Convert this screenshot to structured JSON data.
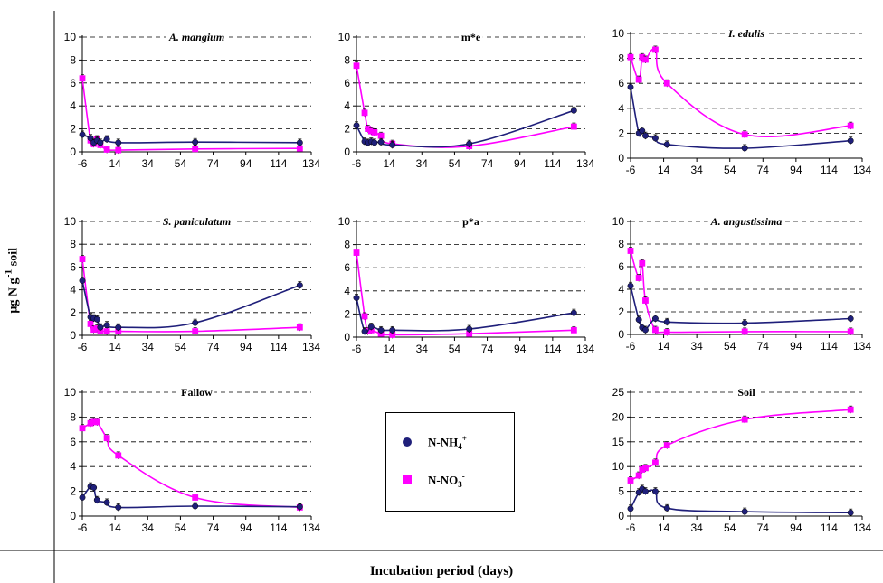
{
  "figure": {
    "ylabel_main": "µg N g",
    "ylabel_sup": "-1",
    "ylabel_tail": " soil",
    "xlabel": "Incubation period (days)"
  },
  "legend": {
    "items": [
      {
        "label": "N-NH",
        "sub": "4",
        "sup": "+",
        "color": "#1f1f7a",
        "marker": "circle"
      },
      {
        "label": "N-NO",
        "sub": "3",
        "sup": "-",
        "color": "#ff00ff",
        "marker": "square"
      }
    ]
  },
  "colors": {
    "nh4": "#1f1f7a",
    "no3": "#ff00ff"
  },
  "chart_data": [
    {
      "type": "line",
      "title": "A. mangium",
      "title_italic": true,
      "x_ticks": [
        -6,
        14,
        34,
        54,
        74,
        94,
        114,
        134
      ],
      "ylim": [
        0,
        10
      ],
      "y_ticks": [
        0,
        2,
        4,
        6,
        8,
        10
      ],
      "series": [
        {
          "key": "nh4",
          "points": [
            [
              -6,
              1.5
            ],
            [
              -1,
              1.2
            ],
            [
              1,
              0.8
            ],
            [
              3,
              1.0
            ],
            [
              5,
              0.8
            ],
            [
              9,
              1.1
            ],
            [
              16,
              0.8
            ],
            [
              63,
              0.85
            ],
            [
              127,
              0.8
            ]
          ]
        },
        {
          "key": "no3",
          "points": [
            [
              -6,
              6.4
            ],
            [
              -1,
              1.0
            ],
            [
              1,
              0.7
            ],
            [
              3,
              1.1
            ],
            [
              5,
              0.6
            ],
            [
              9,
              0.2
            ],
            [
              16,
              0.15
            ],
            [
              63,
              0.25
            ],
            [
              127,
              0.3
            ]
          ]
        }
      ]
    },
    {
      "type": "line",
      "title": "m*e",
      "title_italic": false,
      "x_ticks": [
        -6,
        14,
        34,
        54,
        74,
        94,
        114,
        134
      ],
      "ylim": [
        0,
        10
      ],
      "y_ticks": [
        0,
        2,
        4,
        6,
        8,
        10
      ],
      "series": [
        {
          "key": "nh4",
          "points": [
            [
              -6,
              2.3
            ],
            [
              -1,
              0.9
            ],
            [
              1,
              0.8
            ],
            [
              3,
              0.9
            ],
            [
              5,
              0.8
            ],
            [
              9,
              0.85
            ],
            [
              16,
              0.6
            ],
            [
              63,
              0.7
            ],
            [
              127,
              3.6
            ]
          ]
        },
        {
          "key": "no3",
          "points": [
            [
              -6,
              7.5
            ],
            [
              -1,
              3.4
            ],
            [
              1,
              2.0
            ],
            [
              3,
              1.8
            ],
            [
              5,
              1.7
            ],
            [
              9,
              1.4
            ],
            [
              16,
              0.7
            ],
            [
              63,
              0.5
            ],
            [
              127,
              2.2
            ]
          ]
        }
      ]
    },
    {
      "type": "line",
      "title": "I. edulis",
      "title_italic": true,
      "x_ticks": [
        -6,
        14,
        34,
        54,
        74,
        94,
        114,
        134
      ],
      "ylim": [
        0,
        10
      ],
      "y_ticks": [
        0,
        2,
        4,
        6,
        8,
        10
      ],
      "series": [
        {
          "key": "nh4",
          "points": [
            [
              -6,
              5.7
            ],
            [
              -1,
              2.0
            ],
            [
              1,
              2.2
            ],
            [
              3,
              1.8
            ],
            [
              9,
              1.6
            ],
            [
              16,
              1.1
            ],
            [
              63,
              0.8
            ],
            [
              127,
              1.4
            ]
          ]
        },
        {
          "key": "no3",
          "points": [
            [
              -6,
              8.1
            ],
            [
              -1,
              6.3
            ],
            [
              1,
              8.1
            ],
            [
              3,
              7.9
            ],
            [
              9,
              8.7
            ],
            [
              16,
              6.0
            ],
            [
              63,
              1.9
            ],
            [
              127,
              2.6
            ]
          ]
        }
      ]
    },
    {
      "type": "line",
      "title": "S. paniculatum",
      "title_italic": true,
      "x_ticks": [
        -6,
        14,
        34,
        54,
        74,
        94,
        114,
        134
      ],
      "ylim": [
        0,
        10
      ],
      "y_ticks": [
        0,
        2,
        4,
        6,
        8,
        10
      ],
      "series": [
        {
          "key": "nh4",
          "points": [
            [
              -6,
              4.8
            ],
            [
              -1,
              1.6
            ],
            [
              1,
              1.5
            ],
            [
              3,
              1.4
            ],
            [
              5,
              0.7
            ],
            [
              9,
              0.9
            ],
            [
              16,
              0.7
            ],
            [
              63,
              1.1
            ],
            [
              127,
              4.4
            ]
          ]
        },
        {
          "key": "no3",
          "points": [
            [
              -6,
              6.7
            ],
            [
              -1,
              1.0
            ],
            [
              1,
              0.5
            ],
            [
              3,
              0.6
            ],
            [
              5,
              0.4
            ],
            [
              9,
              0.35
            ],
            [
              16,
              0.35
            ],
            [
              63,
              0.35
            ],
            [
              127,
              0.7
            ]
          ]
        }
      ]
    },
    {
      "type": "line",
      "title": "p*a",
      "title_italic": false,
      "x_ticks": [
        -6,
        14,
        34,
        54,
        74,
        94,
        114,
        134
      ],
      "ylim": [
        0,
        10
      ],
      "y_ticks": [
        0,
        2,
        4,
        6,
        8,
        10
      ],
      "series": [
        {
          "key": "nh4",
          "points": [
            [
              -6,
              3.4
            ],
            [
              -1,
              0.5
            ],
            [
              3,
              0.9
            ],
            [
              9,
              0.6
            ],
            [
              16,
              0.6
            ],
            [
              63,
              0.7
            ],
            [
              127,
              2.1
            ]
          ]
        },
        {
          "key": "no3",
          "points": [
            [
              -6,
              7.3
            ],
            [
              -1,
              1.8
            ],
            [
              1,
              0.5
            ],
            [
              3,
              0.6
            ],
            [
              9,
              0.3
            ],
            [
              16,
              0.2
            ],
            [
              63,
              0.3
            ],
            [
              127,
              0.6
            ]
          ]
        }
      ]
    },
    {
      "type": "line",
      "title": "A. angustissima",
      "title_italic": true,
      "x_ticks": [
        -6,
        14,
        34,
        54,
        74,
        94,
        114,
        134
      ],
      "ylim": [
        0,
        10
      ],
      "y_ticks": [
        0,
        2,
        4,
        6,
        8,
        10
      ],
      "series": [
        {
          "key": "nh4",
          "points": [
            [
              -6,
              4.3
            ],
            [
              -1,
              1.3
            ],
            [
              1,
              0.6
            ],
            [
              3,
              0.4
            ],
            [
              9,
              1.4
            ],
            [
              16,
              1.1
            ],
            [
              63,
              1.0
            ],
            [
              127,
              1.4
            ]
          ]
        },
        {
          "key": "no3",
          "points": [
            [
              -6,
              7.4
            ],
            [
              -1,
              5.0
            ],
            [
              1,
              6.3
            ],
            [
              3,
              3.0
            ],
            [
              9,
              0.4
            ],
            [
              16,
              0.2
            ],
            [
              63,
              0.25
            ],
            [
              127,
              0.25
            ]
          ]
        }
      ]
    },
    {
      "type": "line",
      "title": "Fallow",
      "title_italic": false,
      "x_ticks": [
        -6,
        14,
        34,
        54,
        74,
        94,
        114,
        134
      ],
      "ylim": [
        0,
        10
      ],
      "y_ticks": [
        0,
        2,
        4,
        6,
        8,
        10
      ],
      "series": [
        {
          "key": "nh4",
          "points": [
            [
              -6,
              1.5
            ],
            [
              -1,
              2.4
            ],
            [
              1,
              2.3
            ],
            [
              3,
              1.3
            ],
            [
              9,
              1.1
            ],
            [
              16,
              0.7
            ],
            [
              63,
              0.8
            ],
            [
              127,
              0.75
            ]
          ]
        },
        {
          "key": "no3",
          "points": [
            [
              -6,
              7.1
            ],
            [
              -1,
              7.5
            ],
            [
              1,
              7.6
            ],
            [
              3,
              7.6
            ],
            [
              9,
              6.3
            ],
            [
              16,
              4.9
            ],
            [
              63,
              1.5
            ],
            [
              127,
              0.7
            ]
          ]
        }
      ]
    },
    {
      "type": "line",
      "title": "Soil",
      "title_italic": false,
      "x_ticks": [
        -6,
        14,
        34,
        54,
        74,
        94,
        114,
        134
      ],
      "ylim": [
        0,
        25
      ],
      "y_ticks": [
        0,
        5,
        10,
        15,
        20,
        25
      ],
      "series": [
        {
          "key": "nh4",
          "points": [
            [
              -6,
              1.5
            ],
            [
              -1,
              4.8
            ],
            [
              1,
              5.5
            ],
            [
              3,
              5.0
            ],
            [
              9,
              5.0
            ],
            [
              16,
              1.6
            ],
            [
              63,
              0.9
            ],
            [
              127,
              0.7
            ]
          ]
        },
        {
          "key": "no3",
          "points": [
            [
              -6,
              7.2
            ],
            [
              -1,
              8.2
            ],
            [
              1,
              9.4
            ],
            [
              3,
              9.7
            ],
            [
              9,
              10.8
            ],
            [
              16,
              14.3
            ],
            [
              63,
              19.5
            ],
            [
              127,
              21.5
            ]
          ]
        }
      ]
    }
  ]
}
